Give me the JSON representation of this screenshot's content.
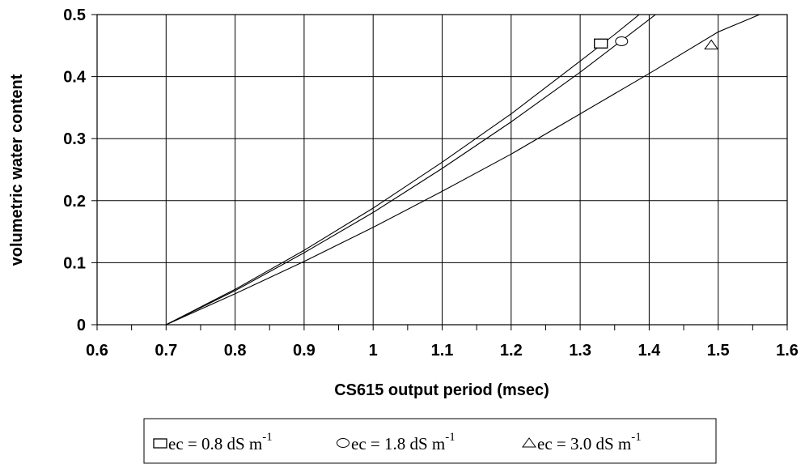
{
  "chart_data": {
    "type": "line",
    "title": "",
    "xlabel": "CS615 output period (msec)",
    "ylabel": "volumetric water content",
    "xlim": [
      0.6,
      1.6
    ],
    "ylim": [
      0,
      0.5
    ],
    "x_ticks": [
      "0.6",
      "0.7",
      "0.8",
      "0.9",
      "1",
      "1.1",
      "1.2",
      "1.3",
      "1.4",
      "1.5",
      "1.6"
    ],
    "y_ticks": [
      "0",
      "0.1",
      "0.2",
      "0.3",
      "0.4",
      "0.5"
    ],
    "grid": true,
    "legend_position": "bottom",
    "series": [
      {
        "name": "ec = 0.8 dS m-1",
        "legend_text": "ec = 0.8 dS m",
        "legend_sup": "-1",
        "marker": "square",
        "marker_at": [
          1.33,
          0.454
        ],
        "x": [
          0.7,
          0.8,
          0.9,
          1.0,
          1.1,
          1.2,
          1.3,
          1.35,
          1.4
        ],
        "y": [
          0.0,
          0.057,
          0.12,
          0.188,
          0.262,
          0.34,
          0.425,
          0.468,
          0.513
        ]
      },
      {
        "name": "ec = 1.8 dS m-1",
        "legend_text": "ec =  1.8 dS m",
        "legend_sup": "-1",
        "marker": "circle",
        "marker_at": [
          1.36,
          0.457
        ],
        "x": [
          0.7,
          0.8,
          0.9,
          1.0,
          1.1,
          1.2,
          1.3,
          1.4,
          1.43
        ],
        "y": [
          0.0,
          0.055,
          0.116,
          0.181,
          0.252,
          0.327,
          0.407,
          0.492,
          0.518
        ]
      },
      {
        "name": "ec = 3.0 dS m-1",
        "legend_text": "ec =  3.0 dS m",
        "legend_sup": "-1",
        "marker": "triangle",
        "marker_at": [
          1.49,
          0.451
        ],
        "x": [
          0.7,
          0.8,
          0.9,
          1.0,
          1.1,
          1.2,
          1.3,
          1.4,
          1.5,
          1.56
        ],
        "y": [
          0.0,
          0.05,
          0.102,
          0.157,
          0.215,
          0.275,
          0.34,
          0.405,
          0.472,
          0.5
        ]
      }
    ]
  }
}
